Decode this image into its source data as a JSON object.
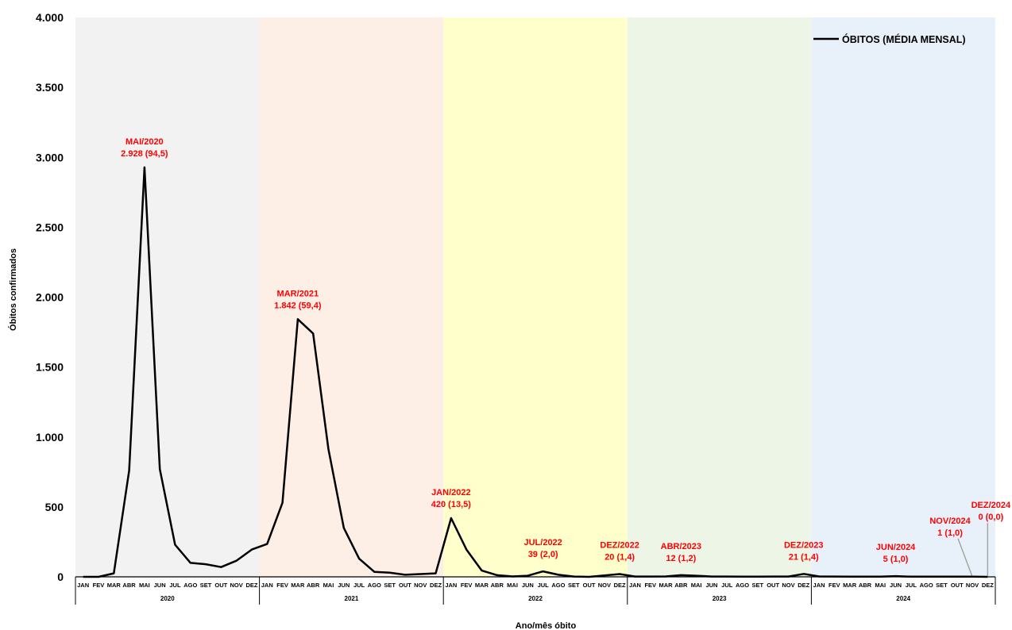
{
  "chart_data": {
    "type": "line",
    "xlabel": "Ano/mês óbito",
    "ylabel": "Óbitos confirmados",
    "ylim": [
      0,
      4000
    ],
    "yticks": [
      0,
      500,
      1000,
      1500,
      2000,
      2500,
      3000,
      3500,
      4000
    ],
    "ytick_labels": [
      "0",
      "500",
      "1.000",
      "1.500",
      "2.000",
      "2.500",
      "3.000",
      "3.500",
      "4.000"
    ],
    "month_labels": [
      "JAN",
      "FEV",
      "MAR",
      "ABR",
      "MAI",
      "JUN",
      "JUL",
      "AGO",
      "SET",
      "OUT",
      "NOV",
      "DEZ"
    ],
    "years": [
      {
        "label": "2020",
        "color": "#f2f2f2"
      },
      {
        "label": "2021",
        "color": "#fdeee6"
      },
      {
        "label": "2022",
        "color": "#ffffcc"
      },
      {
        "label": "2023",
        "color": "#edf5e6"
      },
      {
        "label": "2024",
        "color": "#e8f1fa"
      }
    ],
    "grid": false,
    "legend": "top-right",
    "series": [
      {
        "name": "ÓBITOS (MÉDIA MENSAL)",
        "color": "#000000",
        "values": [
          0,
          0,
          25,
          760,
          2928,
          770,
          230,
          100,
          90,
          70,
          115,
          195,
          235,
          530,
          1842,
          1740,
          915,
          350,
          130,
          35,
          30,
          15,
          20,
          25,
          420,
          195,
          45,
          12,
          3,
          8,
          39,
          15,
          2,
          0,
          10,
          20,
          2,
          2,
          3,
          12,
          8,
          2,
          2,
          1,
          1,
          2,
          2,
          21,
          3,
          2,
          1,
          1,
          1,
          5,
          1,
          1,
          1,
          1,
          1,
          0
        ]
      }
    ],
    "annotations": [
      {
        "index": 4,
        "lines": [
          "MAI/2020",
          "2.928  (94,5)"
        ]
      },
      {
        "index": 14,
        "lines": [
          "MAR/2021",
          "1.842  (59,4)"
        ]
      },
      {
        "index": 24,
        "lines": [
          "JAN/2022",
          "420 (13,5)"
        ]
      },
      {
        "index": 30,
        "lines": [
          "JUL/2022",
          "39 (2,0)"
        ]
      },
      {
        "index": 35,
        "lines": [
          "DEZ/2022",
          "20 (1,4)"
        ]
      },
      {
        "index": 39,
        "lines": [
          "ABR/2023",
          "12 (1,2)"
        ]
      },
      {
        "index": 47,
        "lines": [
          "DEZ/2023",
          "21 (1,4)"
        ]
      },
      {
        "index": 53,
        "lines": [
          "JUN/2024",
          "5 (1,0)"
        ]
      },
      {
        "index": 58,
        "lines": [
          "NOV/2024",
          "1 (1,0)"
        ]
      },
      {
        "index": 59,
        "lines": [
          "DEZ/2024",
          "0 (0,0)"
        ]
      }
    ]
  }
}
